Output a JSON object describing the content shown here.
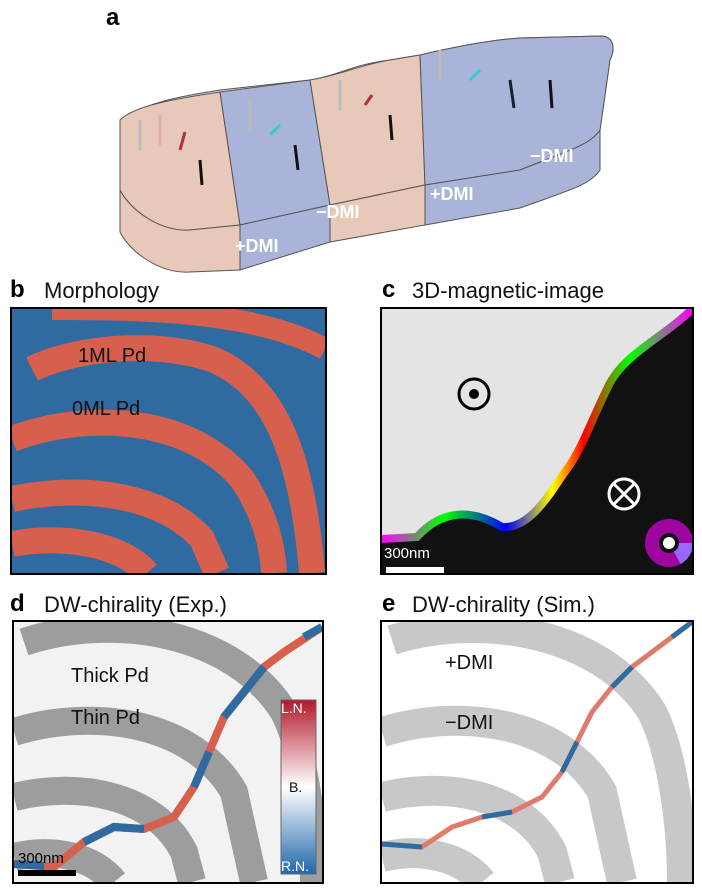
{
  "panels": {
    "a": {
      "label": "a",
      "regions": [
        "+DMI",
        "−DMI",
        "+DMI",
        "−DMI"
      ]
    },
    "b": {
      "label": "b",
      "title": "Morphology",
      "annotations": [
        "1ML Pd",
        "0ML Pd"
      ]
    },
    "c": {
      "label": "c",
      "title": "3D-magnetic-image",
      "scale_bar": "300nm",
      "symbols": [
        "out-of-plane-icon",
        "into-plane-icon",
        "color-wheel-icon"
      ]
    },
    "d": {
      "label": "d",
      "title": "DW-chirality (Exp.)",
      "annotations": [
        "Thick Pd",
        "Thin Pd"
      ],
      "scale_bar": "300nm",
      "colorbar": {
        "top": "L.N.",
        "middle": "B.",
        "bottom": "R.N.",
        "colors": [
          "#b2182b",
          "#ffffff",
          "#2166ac"
        ]
      }
    },
    "e": {
      "label": "e",
      "title": "DW-chirality (Sim.)",
      "annotations": [
        "+DMI",
        "−DMI"
      ]
    }
  },
  "colors": {
    "plus_dmi": "#e8c8b8",
    "minus_dmi": "#a9b4d8",
    "red": "#d6604d",
    "blue": "#2f6aa0"
  }
}
